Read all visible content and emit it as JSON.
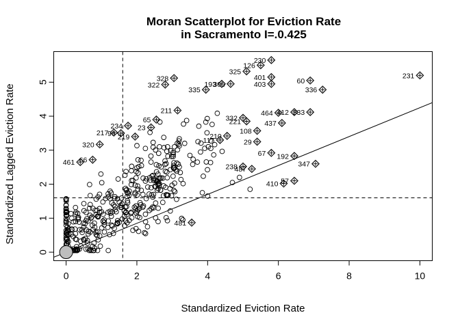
{
  "chart_data": {
    "type": "scatter",
    "title_line1": "Moran Scatterplot for Eviction Rate",
    "title_line2": "in Sacramento I=.0.425",
    "xlabel": "Standardized Eviction Rate",
    "ylabel": "Standardized Lagged Eviction Rate",
    "xlim": [
      -0.35,
      10.35
    ],
    "ylim": [
      -0.25,
      5.9
    ],
    "xticks": [
      0,
      2,
      4,
      6,
      8,
      10
    ],
    "yticks": [
      0,
      1,
      2,
      3,
      4,
      5
    ],
    "mean_x": 1.6,
    "mean_y": 1.6,
    "regression": {
      "slope": 0.425,
      "intercept": 0.0
    },
    "origin_marker": {
      "x": 0,
      "y": 0
    },
    "influential_points": [
      {
        "label": "230",
        "x": 5.8,
        "y": 5.65
      },
      {
        "label": "126",
        "x": 5.5,
        "y": 5.5
      },
      {
        "label": "325",
        "x": 5.1,
        "y": 5.32
      },
      {
        "label": "401",
        "x": 5.8,
        "y": 5.15
      },
      {
        "label": "403",
        "x": 5.8,
        "y": 4.95
      },
      {
        "label": "60",
        "x": 6.9,
        "y": 5.05
      },
      {
        "label": "336",
        "x": 7.25,
        "y": 4.78
      },
      {
        "label": "231",
        "x": 10.0,
        "y": 5.2
      },
      {
        "label": "328",
        "x": 3.05,
        "y": 5.12
      },
      {
        "label": "322",
        "x": 2.8,
        "y": 4.93
      },
      {
        "label": "335",
        "x": 3.95,
        "y": 4.78
      },
      {
        "label": "193",
        "x": 4.4,
        "y": 4.95
      },
      {
        "label": "306",
        "x": 4.65,
        "y": 4.95
      },
      {
        "label": "211",
        "x": 3.15,
        "y": 4.17
      },
      {
        "label": "65",
        "x": 2.55,
        "y": 3.9
      },
      {
        "label": "234",
        "x": 1.75,
        "y": 3.72
      },
      {
        "label": "23",
        "x": 2.4,
        "y": 3.67
      },
      {
        "label": "217",
        "x": 1.35,
        "y": 3.52
      },
      {
        "label": "96",
        "x": 1.55,
        "y": 3.5
      },
      {
        "label": "219",
        "x": 1.95,
        "y": 3.4
      },
      {
        "label": "320",
        "x": 0.95,
        "y": 3.17
      },
      {
        "label": "461",
        "x": 0.4,
        "y": 2.65
      },
      {
        "label": "66",
        "x": 0.75,
        "y": 2.72
      },
      {
        "label": "332",
        "x": 5.0,
        "y": 3.95
      },
      {
        "label": "221",
        "x": 5.1,
        "y": 3.85
      },
      {
        "label": "464",
        "x": 6.0,
        "y": 4.1
      },
      {
        "label": "412",
        "x": 6.45,
        "y": 4.12
      },
      {
        "label": "333",
        "x": 6.9,
        "y": 4.12
      },
      {
        "label": "437",
        "x": 6.1,
        "y": 3.8
      },
      {
        "label": "108",
        "x": 5.4,
        "y": 3.57
      },
      {
        "label": "210",
        "x": 4.55,
        "y": 3.42
      },
      {
        "label": "117",
        "x": 4.35,
        "y": 3.3
      },
      {
        "label": "29",
        "x": 5.4,
        "y": 3.25
      },
      {
        "label": "67",
        "x": 5.8,
        "y": 2.92
      },
      {
        "label": "192",
        "x": 6.45,
        "y": 2.83
      },
      {
        "label": "347",
        "x": 7.05,
        "y": 2.6
      },
      {
        "label": "238",
        "x": 5.0,
        "y": 2.52
      },
      {
        "label": "487",
        "x": 5.25,
        "y": 2.45
      },
      {
        "label": "57",
        "x": 6.45,
        "y": 2.1
      },
      {
        "label": "410",
        "x": 6.15,
        "y": 2.02
      },
      {
        "label": "481",
        "x": 3.55,
        "y": 0.87
      }
    ]
  }
}
